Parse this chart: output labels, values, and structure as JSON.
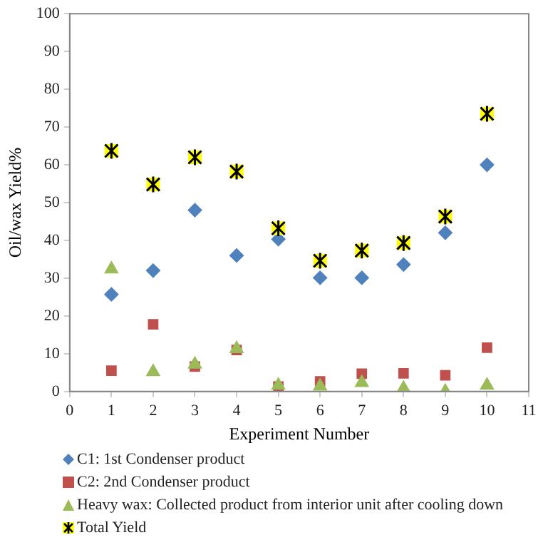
{
  "chart_data": {
    "type": "scatter",
    "xlabel": "Experiment Number",
    "ylabel": "Oil/wax Yield%",
    "x": [
      1,
      2,
      3,
      4,
      5,
      6,
      7,
      8,
      9,
      10
    ],
    "xlim": [
      0,
      11
    ],
    "xticks": [
      0,
      1,
      2,
      3,
      4,
      5,
      6,
      7,
      8,
      9,
      10,
      11
    ],
    "ylim": [
      0,
      100
    ],
    "yticks": [
      0,
      10,
      20,
      30,
      40,
      50,
      60,
      70,
      80,
      90,
      100
    ],
    "grid": false,
    "legend": "bottom",
    "series": [
      {
        "name": "C1: 1st Condenser product",
        "color": "#4f81bd",
        "marker": "diamond",
        "values": [
          25.7,
          32,
          48,
          36,
          40.3,
          30.1,
          30.1,
          33.6,
          42,
          60
        ]
      },
      {
        "name": "C2: 2nd Condenser product",
        "color": "#c0504d",
        "marker": "square",
        "values": [
          5.5,
          17.8,
          6.6,
          11,
          1.3,
          2.7,
          4.7,
          4.8,
          4.3,
          11.6
        ]
      },
      {
        "name": "Heavy wax: Collected product from interior unit after cooling down",
        "color": "#9bbb59",
        "marker": "triangle",
        "values": [
          32.4,
          5.2,
          7.2,
          11.3,
          1.6,
          1.4,
          2.3,
          0.8,
          0,
          1.6
        ]
      },
      {
        "name": "Total Yield",
        "color": "#ffff00",
        "marker": "square",
        "values": [
          63.7,
          54.8,
          62,
          58.2,
          43.2,
          34.6,
          37.3,
          39.3,
          46.3,
          73.5
        ]
      }
    ]
  }
}
